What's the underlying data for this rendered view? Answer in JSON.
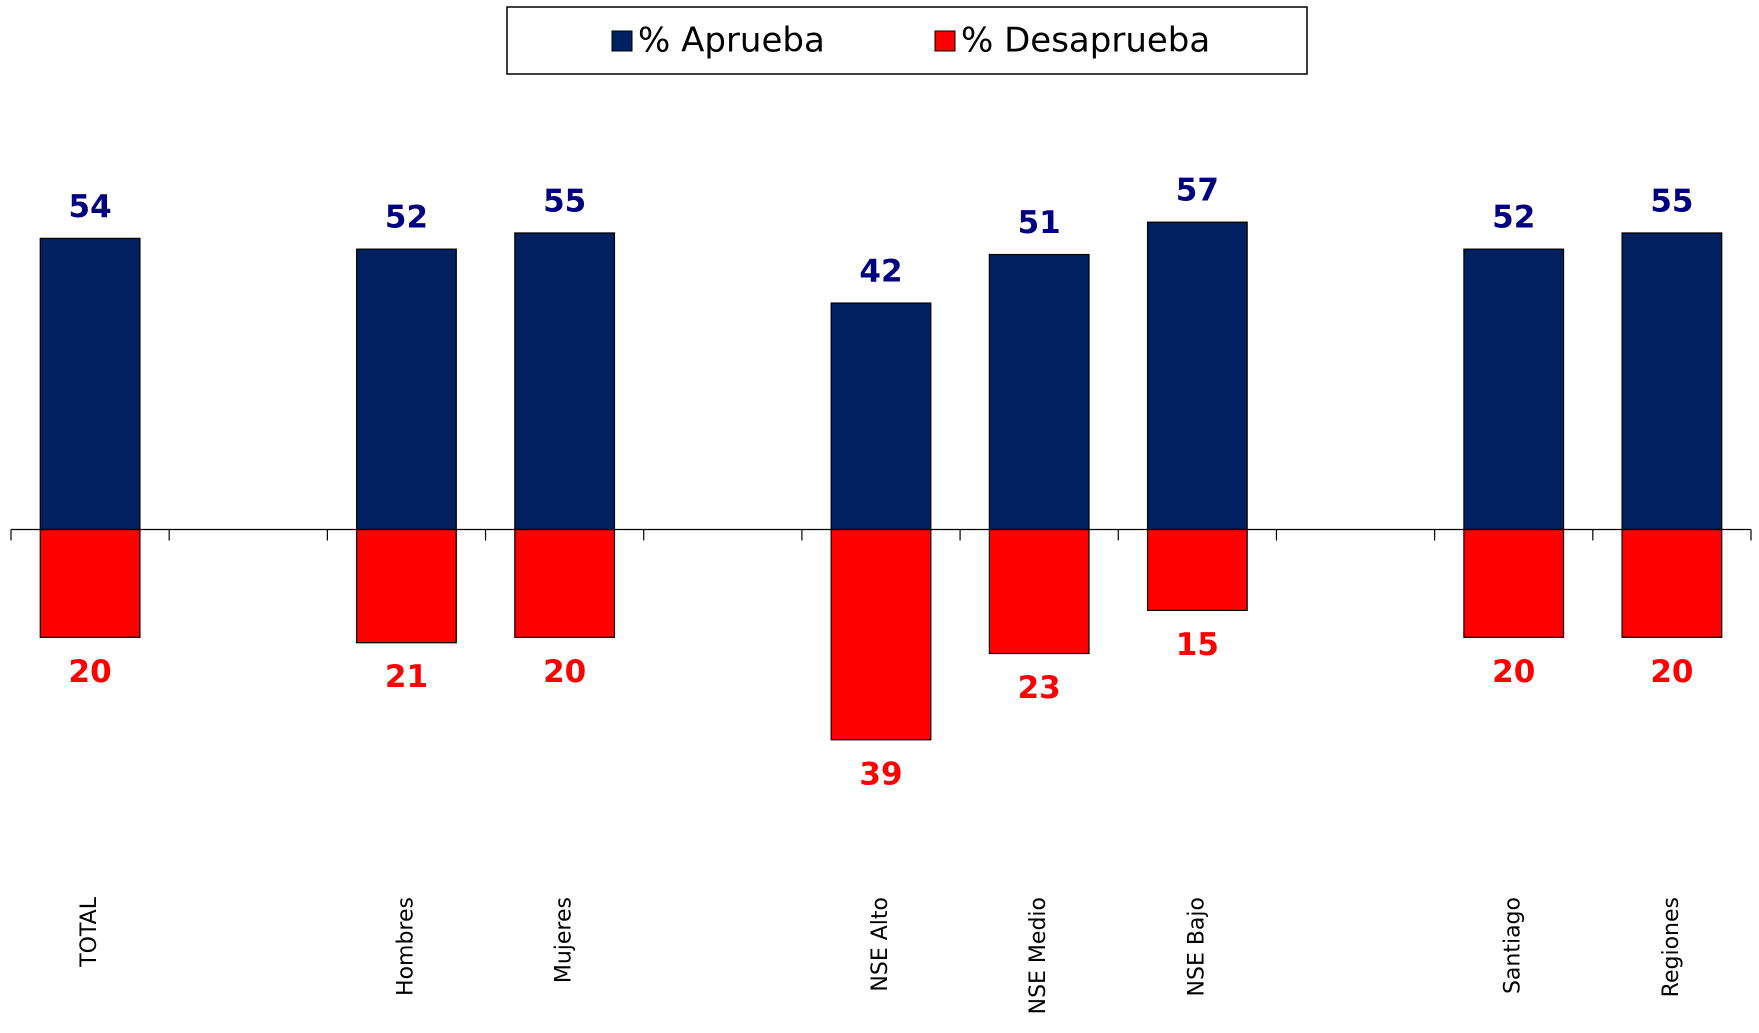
{
  "chart_data": {
    "type": "bar",
    "categories": [
      "TOTAL",
      null,
      "Hombres",
      "Mujeres",
      null,
      "NSE Alto",
      "NSE Medio",
      "NSE Bajo",
      null,
      "Santiago",
      "Regiones"
    ],
    "series": [
      {
        "name": "% Aprueba",
        "color": "#002060",
        "label_color": "#000080",
        "values": [
          54,
          null,
          52,
          55,
          null,
          42,
          51,
          57,
          null,
          52,
          55
        ]
      },
      {
        "name": "% Desaprueba",
        "color": "#ff0000",
        "label_color": "#ff0000",
        "values": [
          -20,
          null,
          -21,
          -20,
          null,
          -39,
          -23,
          -15,
          null,
          -20,
          -20
        ],
        "value_labels": [
          "20",
          null,
          "21",
          "20",
          null,
          "39",
          "23",
          "15",
          null,
          "20",
          "20"
        ]
      }
    ],
    "ylim": [
      -60,
      60
    ]
  }
}
